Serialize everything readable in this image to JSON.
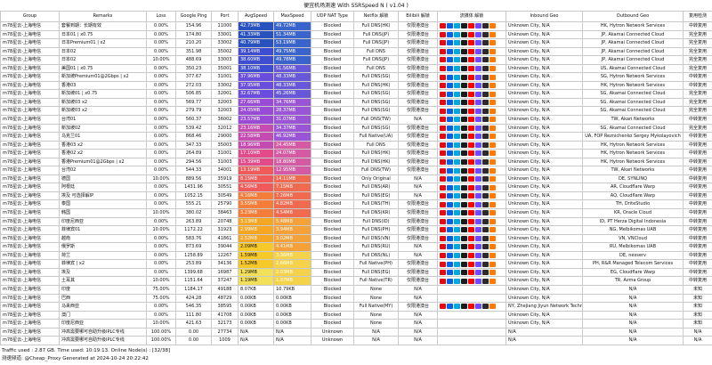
{
  "title": "便宜机场测速 With SSRSpeed N ( v1.04 )",
  "columns": [
    "Group",
    "Remarks",
    "Loss",
    "Google Ping",
    "Port",
    "AvgSpeed",
    "MaxSpeed",
    "UDP NAT Type",
    "Netflix 解锁",
    "Bilibili 解锁",
    "流媒体 解锁",
    "Inbound Geo",
    "Outbound Geo",
    "复用检测"
  ],
  "rows": [
    [
      "m78星云-上海电信",
      "套餐到期：长期有效",
      "0.00%",
      "154.96",
      "11000",
      "42.73MB",
      "49.72MB",
      "Blocked",
      "Full DNS(HK)",
      "仅限港澳台",
      "hk",
      "Unknown City, N/A",
      "HK, Hytron Network Services",
      "中转复用"
    ],
    [
      "m78星云-上海电信",
      "日本01 | x0.75",
      "0.00%",
      "174.80",
      "33001",
      "41.33MB",
      "51.34MB",
      "Blocked",
      "Full DNS(JP)",
      "仅限港澳台",
      "jp",
      "Unknown City, N/A",
      "JP, Akamai Connected Cloud",
      "完全复用"
    ],
    [
      "m78星云-上海电信",
      "日本Premium01 | x2",
      "0.00%",
      "210.20",
      "33002",
      "40.79MB",
      "53.19MB",
      "Blocked",
      "Full DNS(JP)",
      "仅限港澳台",
      "jp",
      "Unknown City, N/A",
      "JP, Akamai Connected Cloud",
      "完全复用"
    ],
    [
      "m78星云-上海电信",
      "日本02",
      "0.00%",
      "351.98",
      "35002",
      "39.14MB",
      "49.75MB",
      "Blocked",
      "Full DNS",
      "仅限港澳台",
      "jp",
      "Unknown City, N/A",
      "JP, Akamai Connected Cloud",
      "完全复用"
    ],
    [
      "m78星云-上海电信",
      "日本02",
      "10.00%",
      "488.69",
      "33003",
      "38.60MB",
      "49.78MB",
      "Blocked",
      "Full DNS(JP)",
      "仅限港澳台",
      "jp",
      "Unknown City, N/A",
      "JP, Akamai Connected Cloud",
      "完全复用"
    ],
    [
      "m78星云-上海电信",
      "美国01 | x0.75",
      "0.00%",
      "350.23",
      "35001",
      "38.10MB",
      "51.56MB",
      "Blocked",
      "Full DNS",
      "仅限港澳台",
      "us",
      "Unknown City, N/A",
      "US, Akamai Connected Cloud",
      "完全复用"
    ],
    [
      "m78星云-上海电信",
      "新加坡Premium01@2Gbps | x2",
      "0.00%",
      "377.67",
      "31001",
      "37.96MB",
      "48.33MB",
      "Blocked",
      "Full DNS(SG)",
      "仅限港澳台",
      "sg",
      "Unknown City, N/A",
      "SG, Hytron Network Services",
      "中转复用"
    ],
    [
      "m78星云-上海电信",
      "香港03",
      "0.00%",
      "272.03",
      "33002",
      "37.95MB",
      "48.33MB",
      "Blocked",
      "Full DNS(HK)",
      "仅限港澳台",
      "hk",
      "Unknown City, N/A",
      "HK, Hytron Network Services",
      "中转复用"
    ],
    [
      "m78星云-上海电信",
      "新加坡01 | x0.75",
      "0.00%",
      "506.85",
      "32001",
      "32.67MB",
      "45.26MB",
      "Blocked",
      "Full DNS(SG)",
      "仅限港澳台",
      "sg",
      "Unknown City, N/A",
      "SG, Akamai Connected Cloud",
      "完全复用"
    ],
    [
      "m78星云-上海电信",
      "新加坡03 x2",
      "0.00%",
      "569.77",
      "32003",
      "27.66MB",
      "34.76MB",
      "Blocked",
      "Full DNS(SG)",
      "仅限港澳台",
      "sg",
      "Unknown City, N/A",
      "SG, Akamai Connected Cloud",
      "完全复用"
    ],
    [
      "m78星云-上海电信",
      "新加坡03 x2",
      "0.00%",
      "279.79",
      "32003",
      "24.05MB",
      "28.37MB",
      "Blocked",
      "Full DNS(SG)",
      "仅限港澳台",
      "sg",
      "Unknown City, N/A",
      "SG, Akamai Connected Cloud",
      "完全复用"
    ],
    [
      "m78星云-上海电信",
      "台湾01",
      "0.00%",
      "560.37",
      "36002",
      "23.57MB",
      "31.07MB",
      "Blocked",
      "Full DNS(TW)",
      "N/A",
      "tw",
      "Unknown City, N/A",
      "TW, Akari Networks",
      "中转复用"
    ],
    [
      "m78星云-上海电信",
      "新加坡02",
      "0.00%",
      "539.42",
      "32012",
      "23.16MB",
      "34.37MB",
      "Blocked",
      "Full DNS(SG)",
      "仅限港澳台",
      "sg",
      "Unknown City, N/A",
      "SG, Akamai Connected Cloud",
      "完全复用"
    ],
    [
      "m78星云-上海电信",
      "乌克兰01",
      "0.00%",
      "868.46",
      "29000",
      "22.58MB",
      "46.92MB",
      "Blocked",
      "Full Native(UA)",
      "仅限港澳台",
      "ua",
      "Unknown City, N/A",
      "UA, FOP Reznichenko Sergey Mykolayovich",
      "中转复用"
    ],
    [
      "m78星云-上海电信",
      "香港03 x2",
      "0.00%",
      "347.33",
      "35003",
      "18.96MB",
      "24.45MB",
      "Blocked",
      "Full DNS",
      "仅限港澳台",
      "hk",
      "Unknown City, N/A",
      "HK, Hytron Network Services",
      "中转复用"
    ],
    [
      "m78星云-上海电信",
      "香港02 x2",
      "0.00%",
      "264.89",
      "31001",
      "17.10MB",
      "24.07MB",
      "Blocked",
      "Full DNS(HK)",
      "仅限港澳台",
      "hk",
      "Unknown City, N/A",
      "HK, Hytron Network Services",
      "中转复用"
    ],
    [
      "m78星云-上海电信",
      "香港Premium01@2Gbps | x2",
      "0.00%",
      "294.56",
      "31003",
      "15.39MB",
      "18.80MB",
      "Blocked",
      "Full DNS(HK)",
      "仅限港澳台",
      "hk",
      "Unknown City, N/A",
      "HK, Hytron Network Services",
      "中转复用"
    ],
    [
      "m78星云-上海电信",
      "台湾02",
      "0.00%",
      "544.33",
      "34001",
      "13.19MB",
      "12.95MB",
      "Blocked",
      "Full DNS(TW)",
      "仅限港澳台",
      "tw",
      "Unknown City, N/A",
      "TW, Akari Networks",
      "中转复用"
    ],
    [
      "m78星云-上海电信",
      "德国",
      "10.00%",
      "889.56",
      "35919",
      "8.15MB",
      "14.11MB",
      "Blocked",
      "Only Original",
      "N/A",
      "de",
      "Unknown City, N/A",
      "DE, SYNLINQ",
      "中转复用"
    ],
    [
      "m78星云-上海电信",
      "阿根廷",
      "0.00%",
      "1431.96",
      "30551",
      "4.56MB",
      "7.15MB",
      "Blocked",
      "Full DNS(AR)",
      "N/A",
      "ar",
      "Unknown City, N/A",
      "AR, Cloudflare Warp",
      "中转复用"
    ],
    [
      "m78星云-上海电信",
      "埃及 可选择解IP",
      "0.00%",
      "1052.15",
      "30549",
      "4.16MB",
      "7.26MB",
      "Blocked",
      "Full DNS(EG)",
      "N/A",
      "eg",
      "Unknown City, N/A",
      "AQ, Cloudflare Warp",
      "中转复用"
    ],
    [
      "m78星云-上海电信",
      "泰国",
      "0.00%",
      "555.21",
      "25790",
      "3.55MB",
      "4.82MB",
      "Blocked",
      "Full DNS(TH)",
      "仅限港澳台",
      "th",
      "Unknown City, N/A",
      "TH, DriteStudio",
      "中转复用"
    ],
    [
      "m78星云-上海电信",
      "韩国",
      "10.00%",
      "380.02",
      "38463",
      "3.23MB",
      "4.54MB",
      "Blocked",
      "Full DNS(KR)",
      "仅限港澳台",
      "kr",
      "Unknown City, N/A",
      "KR, Oracle Cloud",
      "中转复用"
    ],
    [
      "m78星云-上海电信",
      "印度尼西亚",
      "0.00%",
      "263.89",
      "20748",
      "3.13MB",
      "5.48MB",
      "Blocked",
      "Full DNS(ID)",
      "仅限港澳台",
      "id",
      "Unknown City, N/A",
      "ID, PT Herza Digital Indonesia",
      "中转复用"
    ],
    [
      "m78星云-上海电信",
      "菲律宾01",
      "10.00%",
      "1172.22",
      "31923",
      "2.99MB",
      "3.94MB",
      "Blocked",
      "Full DNS(PH)",
      "仅限港澳台",
      "ph",
      "Unknown City, N/A",
      "NG, Melbikomas UAB",
      "中转复用"
    ],
    [
      "m78星云-上海电信",
      "越南",
      "0.00%",
      "583.76",
      "41861",
      "2.52MB",
      "3.02MB",
      "Blocked",
      "Full DNS(VN)",
      "仅限港澳台",
      "vn",
      "Unknown City, N/A",
      "VN, VNCloud",
      "中转复用"
    ],
    [
      "m78星云-上海电信",
      "俄罗斯",
      "0.00%",
      "873.69",
      "39044",
      "2.09MB",
      "4.41MB",
      "Blocked",
      "Full DNS(RU)",
      "N/A",
      "ru",
      "Unknown City, N/A",
      "RU, Melbikomas UAB",
      "中转复用"
    ],
    [
      "m78星云-上海电信",
      "荷兰",
      "0.00%",
      "1258.89",
      "12267",
      "1.59MB",
      "3.36MB",
      "Blocked",
      "Full DNS(NL)",
      "N/A",
      "nl",
      "Unknown City, N/A",
      "DE, nexserv",
      "中转复用"
    ],
    [
      "m78星云-上海电信",
      "菲律宾 | x2",
      "0.00%",
      "253.89",
      "34136",
      "1.52MB",
      "2.66MB",
      "Blocked",
      "Full Native(PH)",
      "仅限港澳台",
      "ph",
      "Unknown City, N/A",
      "PH, R&R Managed Telecom Services",
      "中转复用"
    ],
    [
      "m78星云-上海电信",
      "埃及",
      "0.00%",
      "1399.68",
      "16987",
      "1.29MB",
      "2.03MB",
      "Blocked",
      "Full DNS(EG)",
      "仅限港澳台",
      "eg",
      "Unknown City, N/A",
      "EG, Cloudflare Warp",
      "中转复用"
    ],
    [
      "m78星云-上海电信",
      "土耳其",
      "10.00%",
      "1151.64",
      "37247",
      "1.19MB",
      "1.97MB",
      "Blocked",
      "Full Native(TR)",
      "仅限港澳台",
      "tr",
      "Unknown City, N/A",
      "TR, Azma Group",
      "中转复用"
    ],
    [
      "m78星云-上海电信",
      "印度",
      "75.00%",
      "1184.17",
      "49188",
      "8.07KB",
      "10.79KB",
      "Blocked",
      "None",
      "N/A",
      "none",
      "Unknown City, N/A",
      "N/A",
      "未知"
    ],
    [
      "m78星云-上海电信",
      "巴西",
      "75.00%",
      "424.28",
      "48729",
      "0.00KB",
      "0.00KB",
      "Blocked",
      "None",
      "N/A",
      "none",
      "Unknown City, N/A",
      "N/A",
      "未知"
    ],
    [
      "m78星云-上海电信",
      "马来西亚",
      "0.00%",
      "546.35",
      "38595",
      "0.00KB",
      "0.00KB",
      "Blocked",
      "Full Native(MY)",
      "仅限港澳台",
      "my",
      "NY, Zhejiang Jiyun Network Technology Co",
      "N/A",
      "未知"
    ],
    [
      "m78星云-上海电信",
      "澳门",
      "0.00%",
      "111.80",
      "41708",
      "0.00KB",
      "0.00KB",
      "Blocked",
      "None",
      "N/A",
      "none",
      "Unknown City, N/A",
      "N/A",
      "未知"
    ],
    [
      "m78星云-上海电信",
      "印度尼西亚",
      "10.00%",
      "421.63",
      "32173",
      "0.00KB",
      "0.00KB",
      "Blocked",
      "None",
      "N/A",
      "none",
      "Unknown City, N/A",
      "N/A",
      "未知"
    ],
    [
      "m78星云-上海电信",
      "冲高需要哪可自助升级IPLC专线",
      "100.00%",
      "0.00",
      "27734",
      "N/A",
      "N/A",
      "Unknown",
      "N/A",
      "N/A",
      "na",
      "N/A",
      "N/A",
      "N/A"
    ],
    [
      "m78星云-上海电信",
      "冲高需要哪可自助升级IPLC专线",
      "100.00%",
      "0.00",
      "1009",
      "N/A",
      "N/A",
      "Unknown",
      "N/A",
      "N/A",
      "na",
      "N/A",
      "N/A",
      "N/A"
    ]
  ],
  "footer_line1": "Traffic used : 2.87 GB. Time used: 10:19:13. Online Node(s) : [32/38]",
  "footer_line2": "测速频道: @Cheap_Proxy  Generated at 2024-10-24 20:22:42",
  "colors": {
    "avg_scale": [
      "#2a52be",
      "#3f4ed0",
      "#6a4ddc",
      "#9a4bd6",
      "#c44bb0",
      "#e24a8a",
      "#f05a5a",
      "#f37d39",
      "#f5a623",
      "#f7c928",
      "#f3e05a",
      "#ffffff"
    ],
    "max_scale": [
      "#3a63cc",
      "#6658d6",
      "#9a55d6",
      "#d45aa3",
      "#ef6a4e",
      "#f4a13a",
      "#f4d34a",
      "#ffffff"
    ]
  }
}
